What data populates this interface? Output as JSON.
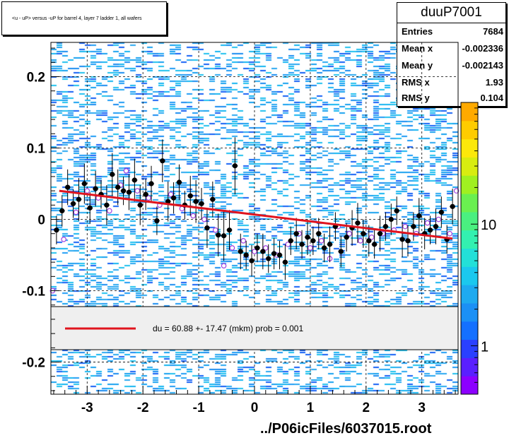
{
  "page_title": "<u - uP>       versus  -uP for barrel 4, layer 7 ladder 1, all wafers",
  "stats": {
    "name": "duuP7001",
    "rows": [
      {
        "key": "Entries",
        "value": "7684"
      },
      {
        "key": "Mean x",
        "value": "-0.002336"
      },
      {
        "key": "Mean y",
        "value": "-0.002143"
      },
      {
        "key": "RMS x",
        "value": "1.93"
      },
      {
        "key": "RMS y",
        "value": "0.104"
      }
    ]
  },
  "fit_legend": "du =   60.88 +- 17.47 (mkm) prob = 0.001",
  "file_label": "../P06icFiles/6037015.root",
  "colors": {
    "fit_line": "#e0141e",
    "profile_points": "#000000",
    "open_markers": "#a040e0",
    "heat_base": "#1ea0ef"
  },
  "chart_data": {
    "type": "heatmap",
    "xlim": [
      -3.65,
      3.65
    ],
    "ylim": [
      -0.245,
      0.248
    ],
    "x_ticks": [
      -3,
      -2,
      -1,
      0,
      1,
      2,
      3
    ],
    "y_ticks": [
      -0.2,
      -0.1,
      0,
      0.1,
      0.2
    ],
    "y_tick_labels": [
      "-0.2",
      "-0.1",
      "0",
      "0.1",
      "0.2"
    ],
    "grid": true,
    "colorbar": {
      "ticks": [
        1,
        10
      ],
      "labels": [
        "1",
        "10"
      ],
      "colors": [
        "#8c00ff",
        "#5a1fff",
        "#2a40ff",
        "#1470ff",
        "#1b90f5",
        "#1eaaf0",
        "#1bc8ee",
        "#22e0d8",
        "#33f0b0",
        "#4af080",
        "#6af050",
        "#a0f020",
        "#d8ec10",
        "#fce80a",
        "#ffcc00",
        "#ffaa00"
      ]
    },
    "fit_line": {
      "x": [
        -3.5,
        3.55
      ],
      "y": [
        0.04,
        -0.027
      ]
    },
    "profile_points": {
      "x": [
        -3.55,
        -3.45,
        -3.35,
        -3.25,
        -3.15,
        -3.05,
        -2.95,
        -2.85,
        -2.75,
        -2.65,
        -2.55,
        -2.45,
        -2.35,
        -2.25,
        -2.15,
        -2.05,
        -1.95,
        -1.85,
        -1.75,
        -1.65,
        -1.55,
        -1.45,
        -1.35,
        -1.25,
        -1.15,
        -1.05,
        -0.95,
        -0.85,
        -0.75,
        -0.65,
        -0.55,
        -0.45,
        -0.35,
        -0.25,
        -0.15,
        -0.05,
        0.05,
        0.15,
        0.25,
        0.35,
        0.45,
        0.55,
        0.65,
        0.75,
        0.85,
        0.95,
        1.05,
        1.15,
        1.25,
        1.35,
        1.45,
        1.55,
        1.65,
        1.75,
        1.85,
        1.95,
        2.05,
        2.15,
        2.25,
        2.35,
        2.45,
        2.55,
        2.65,
        2.75,
        2.85,
        2.95,
        3.05,
        3.15,
        3.25,
        3.35,
        3.45,
        3.55
      ],
      "y": [
        -0.015,
        0.012,
        0.045,
        0.022,
        0.028,
        0.05,
        0.016,
        0.043,
        0.035,
        0.02,
        0.063,
        0.045,
        0.04,
        0.038,
        0.055,
        0.02,
        0.035,
        0.05,
        -0.002,
        0.082,
        0.025,
        0.03,
        0.052,
        0.02,
        0.033,
        0.025,
        0.022,
        -0.012,
        0.028,
        -0.022,
        -0.023,
        -0.015,
        0.075,
        -0.045,
        -0.05,
        -0.058,
        -0.04,
        -0.045,
        -0.055,
        -0.048,
        -0.05,
        -0.06,
        -0.03,
        -0.02,
        -0.035,
        -0.025,
        -0.03,
        -0.02,
        -0.04,
        -0.035,
        -0.01,
        -0.045,
        -0.025,
        -0.012,
        -0.005,
        -0.02,
        -0.03,
        -0.035,
        -0.02,
        -0.01,
        0.0,
        0.012,
        -0.028,
        -0.03,
        -0.01,
        0.005,
        -0.02,
        -0.015,
        -0.01,
        0.01,
        -0.028,
        0.018
      ],
      "err": [
        0.02,
        0.022,
        0.025,
        0.02,
        0.03,
        0.028,
        0.022,
        0.025,
        0.02,
        0.028,
        0.03,
        0.025,
        0.02,
        0.025,
        0.03,
        0.028,
        0.022,
        0.025,
        0.02,
        0.03,
        0.028,
        0.022,
        0.025,
        0.02,
        0.028,
        0.03,
        0.022,
        0.028,
        0.025,
        0.03,
        0.035,
        0.028,
        0.04,
        0.025,
        0.02,
        0.022,
        0.02,
        0.025,
        0.02,
        0.022,
        0.02,
        0.025,
        0.02,
        0.022,
        0.02,
        0.025,
        0.02,
        0.022,
        0.02,
        0.025,
        0.02,
        0.022,
        0.02,
        0.025,
        0.028,
        0.02,
        0.022,
        0.02,
        0.025,
        0.02,
        0.022,
        0.02,
        0.025,
        0.022,
        0.02,
        0.025,
        0.022,
        0.02,
        0.025,
        0.022,
        0.02,
        0.025
      ]
    },
    "open_markers": {
      "x": [
        -3.62,
        -3.42,
        -3.2,
        -3.0,
        -2.8,
        -2.6,
        -2.4,
        -2.3,
        -2.1,
        -1.9,
        -1.7,
        -1.5,
        -1.3,
        -1.1,
        -0.9,
        -0.7,
        -0.55,
        -0.4,
        -0.2,
        0.0,
        0.2,
        0.4,
        0.6,
        0.8,
        1.0,
        1.2,
        1.35,
        1.5,
        1.7,
        1.9,
        2.1,
        2.3,
        2.5,
        2.7,
        2.9,
        3.1,
        3.3,
        3.5,
        3.62
      ],
      "y": [
        -0.1,
        -0.028,
        0.01,
        0.04,
        0.03,
        0.012,
        0.048,
        0.068,
        0.04,
        0.03,
        0.02,
        0.035,
        0.015,
        0.005,
        0.0,
        -0.015,
        -0.065,
        -0.04,
        -0.03,
        -0.045,
        -0.04,
        -0.05,
        -0.035,
        -0.02,
        -0.04,
        -0.03,
        -0.055,
        -0.01,
        -0.02,
        -0.03,
        -0.025,
        -0.02,
        -0.015,
        -0.01,
        -0.02,
        -0.005,
        0.0,
        -0.02,
        0.04
      ]
    }
  }
}
